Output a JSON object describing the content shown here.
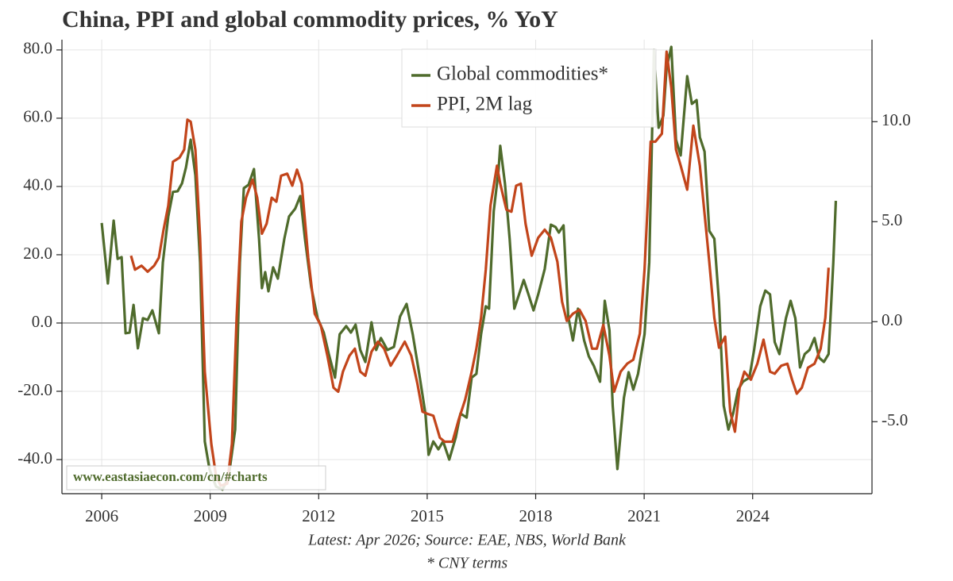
{
  "chart_data": {
    "type": "line",
    "title": "China, PPI and global commodity prices, % YoY",
    "source": "Latest: Apr 2026; Source: EAE, NBS, World Bank",
    "footnote": "* CNY terms",
    "watermark": "www.eastasiaecon.com/cn/#charts",
    "grid": true,
    "zero_line": true,
    "legend": "upper center",
    "xlim": [
      2004.9,
      2027.3
    ],
    "xticks": [
      2006,
      2009,
      2012,
      2015,
      2018,
      2021,
      2024
    ],
    "ylim": [
      -50,
      83
    ],
    "yticks": [
      {
        "value": -40,
        "label": "-40.0"
      },
      {
        "value": -20,
        "label": "-20.0"
      },
      {
        "value": 0,
        "label": "0.0"
      },
      {
        "value": 20,
        "label": "20.0"
      },
      {
        "value": 40,
        "label": "40.0"
      },
      {
        "value": 60,
        "label": "60.0"
      },
      {
        "value": 80,
        "label": "80.0"
      }
    ],
    "y2lim": [
      -8.6,
      14.1
    ],
    "y2ticks": [
      {
        "value": -5,
        "label": "-5.0"
      },
      {
        "value": 0,
        "label": "0.0"
      },
      {
        "value": 5,
        "label": "5.0"
      },
      {
        "value": 10,
        "label": "10.0"
      }
    ],
    "series": [
      {
        "name": "Global commodities*",
        "color": "#4f6b2c",
        "x": [
          2006.0,
          2006.17,
          2006.33,
          2006.44,
          2006.55,
          2006.66,
          2006.77,
          2006.88,
          2007.0,
          2007.14,
          2007.27,
          2007.4,
          2007.58,
          2007.69,
          2007.84,
          2007.97,
          2008.1,
          2008.22,
          2008.33,
          2008.46,
          2008.59,
          2008.72,
          2008.85,
          2008.98,
          2009.16,
          2009.34,
          2009.51,
          2009.69,
          2009.82,
          2009.93,
          2010.06,
          2010.21,
          2010.35,
          2010.43,
          2010.52,
          2010.61,
          2010.74,
          2010.87,
          2011.05,
          2011.18,
          2011.35,
          2011.49,
          2011.62,
          2011.79,
          2011.97,
          2012.14,
          2012.28,
          2012.45,
          2012.58,
          2012.76,
          2012.89,
          2013.02,
          2013.15,
          2013.29,
          2013.46,
          2013.59,
          2013.72,
          2013.9,
          2014.08,
          2014.25,
          2014.43,
          2014.6,
          2014.78,
          2014.95,
          2015.04,
          2015.17,
          2015.31,
          2015.44,
          2015.61,
          2015.79,
          2015.92,
          2016.09,
          2016.23,
          2016.36,
          2016.49,
          2016.62,
          2016.71,
          2016.84,
          2016.97,
          2017.02,
          2017.15,
          2017.28,
          2017.41,
          2017.54,
          2017.67,
          2017.8,
          2017.94,
          2018.07,
          2018.25,
          2018.42,
          2018.55,
          2018.64,
          2018.77,
          2018.9,
          2019.03,
          2019.17,
          2019.34,
          2019.47,
          2019.61,
          2019.78,
          2019.91,
          2020.04,
          2020.13,
          2020.26,
          2020.44,
          2020.57,
          2020.7,
          2020.83,
          2021.01,
          2021.14,
          2021.27,
          2021.4,
          2021.53,
          2021.62,
          2021.75,
          2021.88,
          2022.01,
          2022.19,
          2022.32,
          2022.45,
          2022.54,
          2022.67,
          2022.8,
          2022.94,
          2023.07,
          2023.2,
          2023.33,
          2023.46,
          2023.6,
          2023.73,
          2023.91,
          2024.04,
          2024.21,
          2024.35,
          2024.48,
          2024.61,
          2024.74,
          2024.92,
          2025.05,
          2025.18,
          2025.31,
          2025.44,
          2025.57,
          2025.71,
          2025.84,
          2025.97,
          2026.1,
          2026.23,
          2026.3
        ],
        "values": [
          29.3,
          11.6,
          30,
          18.8,
          19.3,
          -3,
          -2.8,
          5.3,
          -7.4,
          1.4,
          0.9,
          3.7,
          -3,
          17.7,
          31.2,
          38.4,
          38.6,
          40.9,
          45.6,
          53.7,
          43.3,
          17.7,
          -34.7,
          -42.8,
          -47.9,
          -48.8,
          -45.1,
          -31.2,
          17.7,
          39.5,
          40.5,
          45.1,
          24.7,
          10.2,
          14.9,
          9.3,
          16.3,
          13,
          24.7,
          31.2,
          33.5,
          37.2,
          24.7,
          10.7,
          1.4,
          -2.8,
          -9.1,
          -16,
          -3.3,
          -0.9,
          -2.8,
          -0.5,
          -7.9,
          -11.4,
          0.2,
          -7.9,
          -4.4,
          -7.9,
          -7,
          1.9,
          5.6,
          -3.3,
          -14.9,
          -26.5,
          -38.6,
          -34.7,
          -37,
          -34.7,
          -40,
          -33.5,
          -26.5,
          -27.7,
          -16,
          -14.9,
          -3.3,
          4.9,
          4.2,
          32.8,
          44.4,
          51.9,
          40.9,
          24.7,
          4.2,
          8.4,
          12.6,
          8.4,
          3.7,
          8.4,
          15.8,
          28.8,
          28.1,
          26.5,
          28.6,
          1.9,
          -5.1,
          4.2,
          -5.1,
          -9.8,
          -12.6,
          -17.2,
          6.5,
          -2.1,
          -24.2,
          -42.8,
          -21.9,
          -14.4,
          -19.5,
          -14.9,
          -3.3,
          17.7,
          80,
          57.2,
          60.7,
          74.7,
          80.9,
          53.7,
          49.1,
          72.3,
          64.2,
          65.3,
          54.4,
          50.2,
          27,
          24.7,
          6,
          -24.2,
          -31.2,
          -26.5,
          -19.5,
          -17.2,
          -16,
          -7.9,
          4.9,
          9.5,
          8.4,
          -5.6,
          -9.1,
          1.4,
          6.5,
          1.4,
          -13,
          -9.1,
          -7.9,
          -4.4,
          -10.2,
          -11.4,
          -9.1,
          17.7,
          35.8
        ]
      },
      {
        "name": "PPI, 2M lag",
        "color": "#c2451b",
        "axis": "y2",
        "x": [
          2006.81,
          2006.92,
          2007.1,
          2007.27,
          2007.45,
          2007.58,
          2007.71,
          2007.84,
          2007.97,
          2008.15,
          2008.28,
          2008.37,
          2008.46,
          2008.59,
          2008.72,
          2008.85,
          2009.03,
          2009.16,
          2009.29,
          2009.47,
          2009.6,
          2009.73,
          2009.86,
          2009.99,
          2010.17,
          2010.3,
          2010.43,
          2010.56,
          2010.7,
          2010.83,
          2010.96,
          2011.13,
          2011.27,
          2011.4,
          2011.53,
          2011.71,
          2011.89,
          2012.06,
          2012.24,
          2012.41,
          2012.54,
          2012.67,
          2012.85,
          2013.0,
          2013.15,
          2013.29,
          2013.46,
          2013.64,
          2013.81,
          2013.99,
          2014.16,
          2014.38,
          2014.56,
          2014.73,
          2014.87,
          2015.0,
          2015.17,
          2015.35,
          2015.48,
          2015.7,
          2015.87,
          2016.05,
          2016.23,
          2016.36,
          2016.49,
          2016.62,
          2016.75,
          2016.93,
          2017.02,
          2017.19,
          2017.33,
          2017.46,
          2017.59,
          2017.72,
          2017.89,
          2018.07,
          2018.25,
          2018.42,
          2018.6,
          2018.73,
          2018.86,
          2019.03,
          2019.21,
          2019.38,
          2019.56,
          2019.69,
          2019.87,
          2020.04,
          2020.17,
          2020.35,
          2020.53,
          2020.7,
          2020.88,
          2021.01,
          2021.18,
          2021.31,
          2021.49,
          2021.62,
          2021.75,
          2021.88,
          2022.01,
          2022.19,
          2022.36,
          2022.54,
          2022.67,
          2022.8,
          2022.94,
          2023.07,
          2023.24,
          2023.38,
          2023.51,
          2023.64,
          2023.77,
          2023.95,
          2024.13,
          2024.3,
          2024.48,
          2024.61,
          2024.79,
          2024.96,
          2025.09,
          2025.22,
          2025.36,
          2025.53,
          2025.71,
          2025.88,
          2026.01,
          2026.1
        ],
        "values": [
          3.3,
          2.6,
          2.8,
          2.5,
          2.8,
          3.2,
          4.6,
          5.8,
          8.0,
          8.2,
          8.6,
          10.1,
          10.0,
          8.6,
          4.2,
          -2.5,
          -6.1,
          -7.7,
          -8.2,
          -8.1,
          -6.1,
          0.2,
          5.0,
          6.2,
          7.1,
          6.2,
          4.4,
          4.9,
          6.2,
          6.0,
          7.3,
          7.4,
          6.8,
          7.6,
          6.9,
          3.2,
          0.4,
          -0.2,
          -1.7,
          -3.3,
          -3.5,
          -2.5,
          -1.7,
          -1.35,
          -2.5,
          -2.7,
          -1.5,
          -1.0,
          -1.35,
          -2.2,
          -1.7,
          -1.0,
          -1.7,
          -3.1,
          -4.5,
          -4.6,
          -4.7,
          -5.8,
          -6.0,
          -6.0,
          -4.9,
          -3.9,
          -2.5,
          -1.35,
          0.2,
          2.6,
          5.8,
          7.8,
          6.9,
          5.6,
          5.5,
          6.8,
          6.9,
          4.9,
          3.3,
          4.2,
          4.6,
          4.2,
          3.0,
          1.0,
          0.04,
          0.4,
          0.6,
          0.04,
          -1.35,
          -1.35,
          -0.16,
          -1.7,
          -3.5,
          -2.5,
          -2.1,
          -1.9,
          -0.6,
          2.6,
          9.0,
          9.0,
          9.4,
          13.5,
          11.7,
          8.6,
          7.8,
          6.6,
          9.8,
          7.8,
          5.4,
          3.0,
          0.2,
          -1.3,
          -0.75,
          -4.5,
          -5.5,
          -3.3,
          -2.5,
          -2.9,
          -2.1,
          -0.9,
          -2.5,
          -2.6,
          -2.2,
          -2.1,
          -2.9,
          -3.6,
          -3.3,
          -2.3,
          -2.1,
          -1.35,
          0.2,
          2.7
        ]
      }
    ]
  }
}
